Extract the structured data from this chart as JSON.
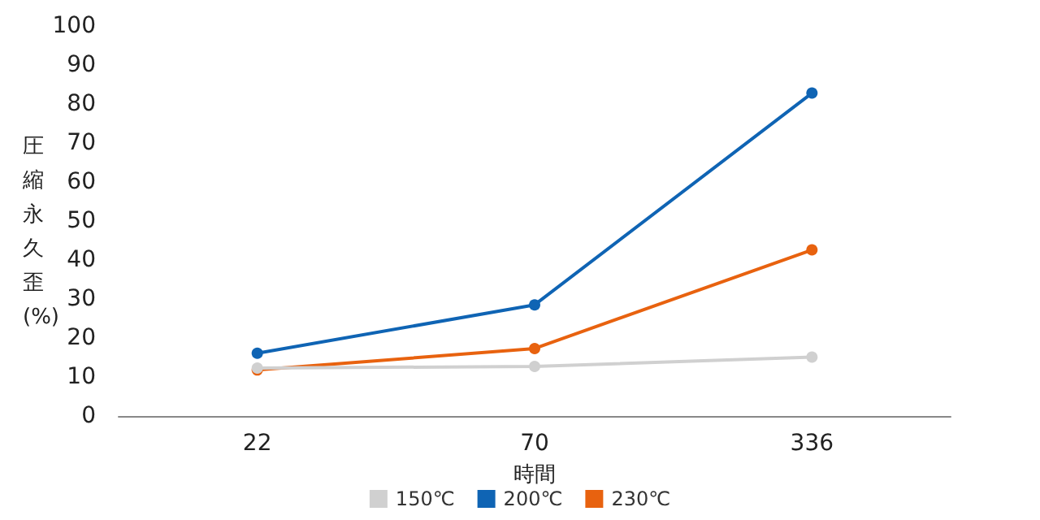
{
  "chart_data": {
    "type": "line",
    "xlabel": "時間",
    "ylabel": "圧縮永久歪(%)",
    "categories": [
      "22",
      "70",
      "336"
    ],
    "series": [
      {
        "name": "150℃",
        "color": "#d0d0d0",
        "values": [
          12.3,
          12.7,
          15.1
        ]
      },
      {
        "name": "200℃",
        "color": "#0f64b4",
        "values": [
          16.1,
          28.5,
          82.8
        ]
      },
      {
        "name": "230℃",
        "color": "#e8620f",
        "values": [
          11.8,
          17.3,
          42.6
        ]
      }
    ],
    "ylim": [
      0,
      100
    ],
    "yticks": [
      0,
      10,
      20,
      30,
      40,
      50,
      60,
      70,
      80,
      90,
      100
    ],
    "grid": false,
    "legend": "bottom",
    "marker": "circle",
    "line_style": "solid"
  }
}
